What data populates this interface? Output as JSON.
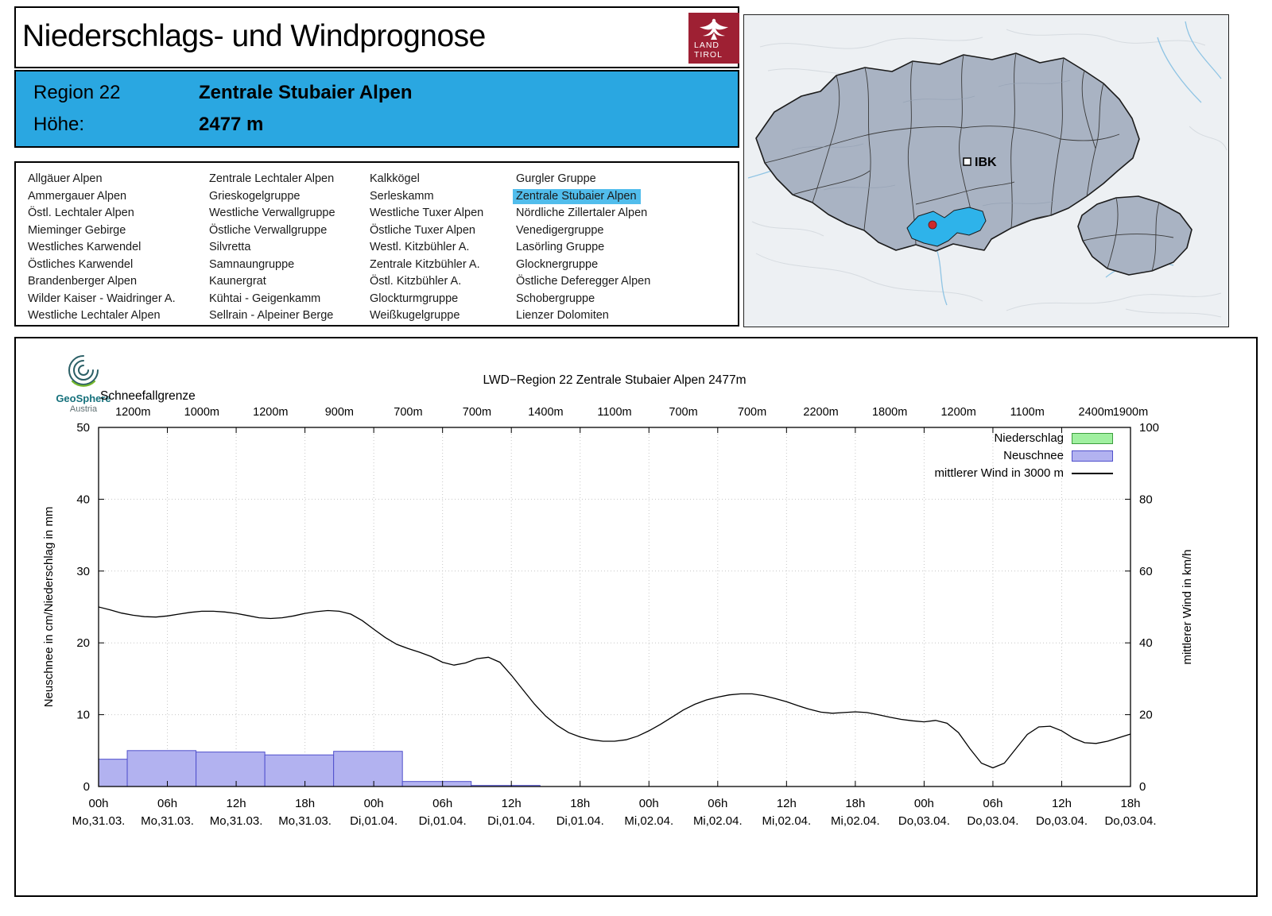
{
  "header": {
    "title": "Niederschlags- und Windprognose",
    "logo": {
      "line1": "LAND",
      "line2": "TIROL",
      "background_color": "#9e2033"
    }
  },
  "region_box": {
    "region_label": "Region 22",
    "region_name": "Zentrale Stubaier Alpen",
    "altitude_label": "Höhe:",
    "altitude_value": "2477 m",
    "background_color": "#2aa7e1"
  },
  "region_list": {
    "selected": "Zentrale Stubaier Alpen",
    "highlight_color": "#51bdec",
    "columns": [
      [
        "Allgäuer Alpen",
        "Ammergauer Alpen",
        "Östl. Lechtaler Alpen",
        "Mieminger Gebirge",
        "Westliches Karwendel",
        "Östliches Karwendel",
        "Brandenberger Alpen",
        "Wilder Kaiser - Waidringer A.",
        "Westliche Lechtaler Alpen"
      ],
      [
        "Zentrale Lechtaler Alpen",
        "Grieskogelgruppe",
        "Westliche Verwallgruppe",
        "Östliche Verwallgruppe",
        "Silvretta",
        "Samnaungruppe",
        "Kaunergrat",
        "Kühtai - Geigenkamm",
        "Sellrain - Alpeiner Berge"
      ],
      [
        "Kalkkögel",
        "Serleskamm",
        "Westliche Tuxer Alpen",
        "Östliche Tuxer Alpen",
        "Westl. Kitzbühler A.",
        "Zentrale Kitzbühler A.",
        "Östl. Kitzbühler A.",
        "Glockturmgruppe",
        "Weißkugelgruppe"
      ],
      [
        "Gurgler Gruppe",
        "Zentrale Stubaier Alpen",
        "Nördliche Zillertaler Alpen",
        "Venedigergruppe",
        "Lasörling Gruppe",
        "Glocknergruppe",
        "Östliche Deferegger Alpen",
        "Schobergruppe",
        "Lienzer Dolomiten"
      ]
    ]
  },
  "map": {
    "ibk_label": "IBK",
    "highlight_color": "#2eb3ea",
    "region_fill": "#a9b3c3"
  },
  "branding": {
    "geosphere_name": "GeoSphere",
    "geosphere_sub": "Austria"
  },
  "chart_data": {
    "type": "bar+line",
    "title": "LWD−Region 22 Zentrale Stubaier Alpen 2477m",
    "snowline": {
      "label": "Schneefallgrenze",
      "values": [
        "1200m",
        "1000m",
        "1200m",
        "900m",
        "700m",
        "700m",
        "1400m",
        "1100m",
        "700m",
        "700m",
        "2200m",
        "1800m",
        "1200m",
        "1100m",
        "2400m",
        "1900m"
      ],
      "positions_hours": [
        3,
        9,
        15,
        21,
        27,
        33,
        39,
        45,
        51,
        57,
        63,
        69,
        75,
        81,
        87,
        90
      ]
    },
    "x_hours_max": 90,
    "x_ticks": [
      {
        "h": "00h",
        "d": "Mo,31.03."
      },
      {
        "h": "06h",
        "d": "Mo,31.03."
      },
      {
        "h": "12h",
        "d": "Mo,31.03."
      },
      {
        "h": "18h",
        "d": "Mo,31.03."
      },
      {
        "h": "00h",
        "d": "Di,01.04."
      },
      {
        "h": "06h",
        "d": "Di,01.04."
      },
      {
        "h": "12h",
        "d": "Di,01.04."
      },
      {
        "h": "18h",
        "d": "Di,01.04."
      },
      {
        "h": "00h",
        "d": "Mi,02.04."
      },
      {
        "h": "06h",
        "d": "Mi,02.04."
      },
      {
        "h": "12h",
        "d": "Mi,02.04."
      },
      {
        "h": "18h",
        "d": "Mi,02.04."
      },
      {
        "h": "00h",
        "d": "Do,03.04."
      },
      {
        "h": "06h",
        "d": "Do,03.04."
      },
      {
        "h": "12h",
        "d": "Do,03.04."
      },
      {
        "h": "18h",
        "d": "Do,03.04."
      }
    ],
    "ylabel_left": "Neuschnee in cm/Niederschlag in mm",
    "ylabel_right": "mittlerer Wind in km/h",
    "ylim_left": [
      0,
      50
    ],
    "ylim_right": [
      0,
      100
    ],
    "yticks_left": [
      0,
      10,
      20,
      30,
      40,
      50
    ],
    "yticks_right": [
      0,
      20,
      40,
      60,
      80,
      100
    ],
    "legend": [
      {
        "label": "Niederschlag",
        "type": "box",
        "fill": "#a0f0a0",
        "stroke": "#3c9e3c"
      },
      {
        "label": "Neuschnee",
        "type": "box",
        "fill": "#b2b2f0",
        "stroke": "#5050cc"
      },
      {
        "label": "mittlerer Wind in 3000 m",
        "type": "line",
        "stroke": "#000000"
      }
    ],
    "series": {
      "niederschlag_mm": {
        "fill": "#a0f0a0",
        "stroke": "#3c9e3c",
        "bars": []
      },
      "neuschnee_cm": {
        "fill": "#b2b2f0",
        "stroke": "#5050cc",
        "bars": [
          {
            "from": 0,
            "to": 2.5,
            "value": 3.8
          },
          {
            "from": 2.5,
            "to": 8.5,
            "value": 5.0
          },
          {
            "from": 8.5,
            "to": 14.5,
            "value": 4.8
          },
          {
            "from": 14.5,
            "to": 20.5,
            "value": 4.4
          },
          {
            "from": 20.5,
            "to": 26.5,
            "value": 4.9
          },
          {
            "from": 26.5,
            "to": 32.5,
            "value": 0.7
          },
          {
            "from": 32.5,
            "to": 38.5,
            "value": 0.15
          }
        ]
      },
      "wind_kmh": {
        "color": "#000000",
        "start_hour": 0,
        "step_hours": 1,
        "values": [
          50.0,
          49.2,
          48.3,
          47.7,
          47.3,
          47.2,
          47.5,
          48.0,
          48.5,
          48.8,
          48.8,
          48.6,
          48.2,
          47.6,
          47.0,
          46.8,
          47.0,
          47.5,
          48.2,
          48.7,
          49.0,
          48.8,
          48.0,
          46.2,
          43.8,
          41.5,
          39.6,
          38.4,
          37.4,
          36.2,
          34.6,
          33.8,
          34.4,
          35.6,
          36.0,
          34.6,
          31.0,
          27.0,
          23.0,
          19.6,
          17.0,
          15.0,
          13.8,
          13.0,
          12.6,
          12.6,
          13.0,
          14.0,
          15.5,
          17.3,
          19.3,
          21.3,
          22.9,
          24.1,
          24.9,
          25.5,
          25.8,
          25.8,
          25.3,
          24.5,
          23.6,
          22.5,
          21.5,
          20.7,
          20.4,
          20.6,
          20.8,
          20.6,
          20.0,
          19.3,
          18.7,
          18.3,
          18.0,
          18.4,
          17.6,
          15.0,
          10.5,
          6.5,
          5.2,
          6.5,
          10.5,
          14.5,
          16.6,
          16.8,
          15.5,
          13.5,
          12.2,
          12.0,
          12.6,
          13.6,
          14.6
        ]
      }
    }
  }
}
